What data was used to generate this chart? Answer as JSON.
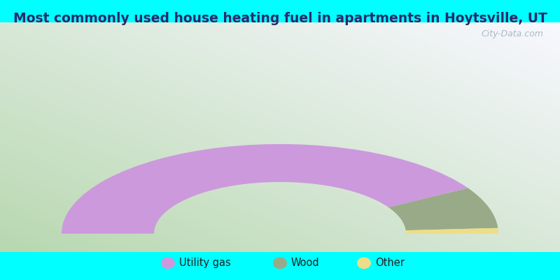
{
  "title": "Most commonly used house heating fuel in apartments in Hoytsville, UT",
  "title_color": "#2a2a6a",
  "title_fontsize": 13.5,
  "outer_background": "#00FFFF",
  "segments": [
    {
      "label": "Utility gas",
      "value": 83,
      "color": "#cc99dd"
    },
    {
      "label": "Wood",
      "value": 15,
      "color": "#99aa88"
    },
    {
      "label": "Other",
      "value": 2,
      "color": "#eedd88"
    }
  ],
  "legend_labels": [
    "Utility gas",
    "Wood",
    "Other"
  ],
  "legend_colors": [
    "#cc99dd",
    "#99aa88",
    "#eedd88"
  ],
  "outer_r": 0.78,
  "inner_r": 0.45,
  "watermark": "City-Data.com",
  "grad_left_bottom": "#b8d8b0",
  "grad_right_top": "#f8f8ff"
}
